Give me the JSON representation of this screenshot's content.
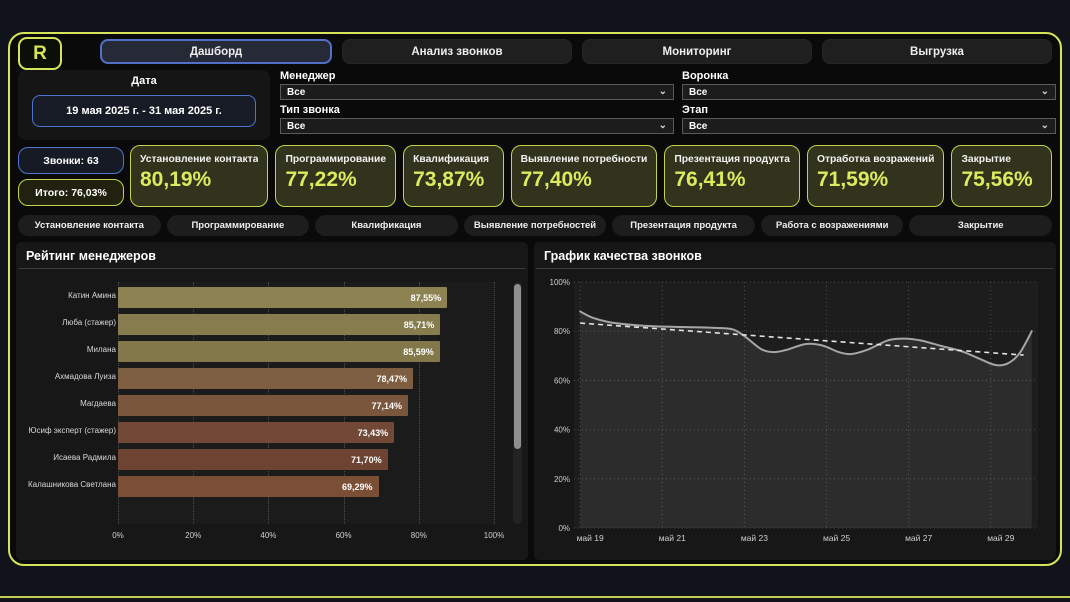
{
  "brand": {
    "logo_text": "R"
  },
  "nav": {
    "tabs": [
      {
        "label": "Дашборд",
        "active": true
      },
      {
        "label": "Анализ звонков",
        "active": false
      },
      {
        "label": "Мониторинг",
        "active": false
      },
      {
        "label": "Выгрузка",
        "active": false
      }
    ]
  },
  "filters": {
    "date": {
      "label": "Дата",
      "value": "19 мая 2025 г. - 31 мая 2025 г."
    },
    "manager": {
      "label": "Менеджер",
      "value": "Все"
    },
    "call_type": {
      "label": "Тип звонка",
      "value": "Все"
    },
    "funnel": {
      "label": "Воронка",
      "value": "Все"
    },
    "stage": {
      "label": "Этап",
      "value": "Все"
    }
  },
  "kpi": {
    "calls": "Звонки: 63",
    "total": "Итого: 76,03%",
    "cards": [
      {
        "label": "Установление контакта",
        "value": "80,19%"
      },
      {
        "label": "Программирование",
        "value": "77,22%"
      },
      {
        "label": "Квалификация",
        "value": "73,87%"
      },
      {
        "label": "Выявление потребности",
        "value": "77,40%"
      },
      {
        "label": "Презентация продукта",
        "value": "76,41%"
      },
      {
        "label": "Отработка возражений",
        "value": "71,59%"
      },
      {
        "label": "Закрытие",
        "value": "75,56%"
      }
    ]
  },
  "stage_tabs": [
    "Установление контакта",
    "Программирование",
    "Квалификация",
    "Выявление потребностей",
    "Презентация продукта",
    "Работа с возражениями",
    "Закрытие"
  ],
  "chart_data": [
    {
      "type": "bar",
      "title": "Рейтинг менеджеров",
      "orientation": "horizontal",
      "categories": [
        "Катин Амина",
        "Люба (стажер)",
        "Милана",
        "Ахмадова Луиза",
        "Магдаева",
        "Юсиф эксперт (стажер)",
        "Исаева Радмила",
        "Калашникова Светлана"
      ],
      "values": [
        87.55,
        85.71,
        85.59,
        78.47,
        77.14,
        73.43,
        71.7,
        69.29
      ],
      "labels": [
        "87,55%",
        "85,71%",
        "85,59%",
        "78,47%",
        "77,14%",
        "73,43%",
        "71,70%",
        "69,29%"
      ],
      "bar_colors": [
        "#8d8252",
        "#877c4e",
        "#837849",
        "#7d5e40",
        "#7a573c",
        "#714936",
        "#6d4432",
        "#7a4f36"
      ],
      "x_ticks": [
        "0%",
        "20%",
        "40%",
        "60%",
        "80%",
        "100%"
      ],
      "xlim": [
        0,
        100
      ],
      "grid": true
    },
    {
      "type": "line",
      "title": "График качества звонков",
      "ylim": [
        0,
        100
      ],
      "y_ticks": [
        0,
        20,
        40,
        60,
        80,
        100
      ],
      "y_tick_labels": [
        "0%",
        "20%",
        "40%",
        "60%",
        "80%",
        "100%"
      ],
      "xlim": [
        18.85,
        30.15
      ],
      "x_ticks": [
        19,
        21,
        23,
        25,
        27,
        29
      ],
      "x_tick_labels": [
        "май 19",
        "май 21",
        "май 23",
        "май 25",
        "май 27",
        "май 29"
      ],
      "grid": true,
      "series": [
        {
          "name": "Качество звонков",
          "style": "solid-area",
          "color": "#a6a6a6",
          "points": [
            [
              19,
              88
            ],
            [
              19.3,
              85.5
            ],
            [
              19.7,
              83.7
            ],
            [
              20.2,
              82.7
            ],
            [
              20.8,
              82
            ],
            [
              21.5,
              81.7
            ],
            [
              22.2,
              81.4
            ],
            [
              22.7,
              80.8
            ],
            [
              23.0,
              78
            ],
            [
              23.4,
              72.8
            ],
            [
              23.7,
              71.5
            ],
            [
              24.0,
              72.3
            ],
            [
              24.5,
              74.8
            ],
            [
              24.9,
              74.2
            ],
            [
              25.3,
              71.5
            ],
            [
              25.6,
              70.7
            ],
            [
              26.0,
              72.5
            ],
            [
              26.5,
              76.3
            ],
            [
              26.9,
              77
            ],
            [
              27.3,
              76.2
            ],
            [
              27.8,
              74
            ],
            [
              28.3,
              71.8
            ],
            [
              28.7,
              69
            ],
            [
              29.1,
              66.3
            ],
            [
              29.4,
              66.8
            ],
            [
              29.7,
              71
            ],
            [
              30.0,
              80
            ]
          ]
        },
        {
          "name": "Тренд",
          "style": "dashed",
          "color": "#e2e2e2",
          "points": [
            [
              19,
              83.3
            ],
            [
              29.8,
              70.3
            ]
          ]
        }
      ]
    }
  ],
  "colors": {
    "accent_lime": "#d6e45a",
    "accent_blue": "#4f74cf",
    "kpi_card_bg": "#31331d",
    "kpi_value": "#dcea5e",
    "panel_bg": "#171717",
    "grid_dot": "#4d4d4d"
  }
}
